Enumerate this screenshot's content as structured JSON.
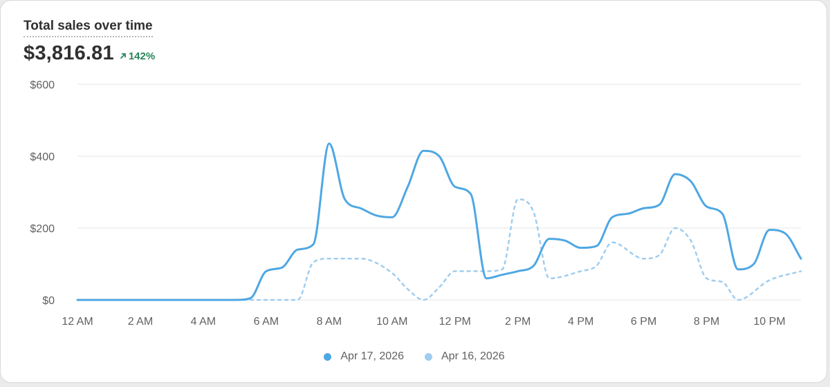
{
  "header": {
    "title": "Total sales over time",
    "total": "$3,816.81",
    "change": "142%"
  },
  "colors": {
    "current": "#4ea7e3",
    "previous": "#9fcdef",
    "change": "#29845a",
    "grid": "#e6e6e6",
    "axis_text": "#616161"
  },
  "chart_data": {
    "type": "line",
    "title": "Total sales over time",
    "xlabel": "",
    "ylabel": "",
    "ylim": [
      0,
      600
    ],
    "xlim": [
      0,
      23
    ],
    "x_ticks": [
      {
        "x": 0,
        "label": "12 AM"
      },
      {
        "x": 2,
        "label": "2 AM"
      },
      {
        "x": 4,
        "label": "4 AM"
      },
      {
        "x": 6,
        "label": "6 AM"
      },
      {
        "x": 8,
        "label": "8 AM"
      },
      {
        "x": 10,
        "label": "10 AM"
      },
      {
        "x": 12,
        "label": "12 PM"
      },
      {
        "x": 14,
        "label": "2 PM"
      },
      {
        "x": 16,
        "label": "4 PM"
      },
      {
        "x": 18,
        "label": "6 PM"
      },
      {
        "x": 20,
        "label": "8 PM"
      },
      {
        "x": 22,
        "label": "10 PM"
      }
    ],
    "y_ticks": [
      {
        "y": 0,
        "label": "$0"
      },
      {
        "y": 200,
        "label": "$200"
      },
      {
        "y": 400,
        "label": "$400"
      },
      {
        "y": 600,
        "label": "$600"
      }
    ],
    "grid": true,
    "legend_position": "bottom",
    "series": [
      {
        "name": "Apr 17, 2026",
        "style": "solid",
        "x": [
          0,
          0.5,
          1,
          1.5,
          2,
          2.5,
          3,
          3.5,
          4,
          4.5,
          5,
          5.5,
          6,
          6.5,
          7,
          7.5,
          8,
          8.5,
          9,
          9.5,
          10,
          10.5,
          11,
          11.5,
          12,
          12.5,
          13,
          13.5,
          14,
          14.5,
          15,
          15.5,
          16,
          16.5,
          17,
          17.5,
          18,
          18.5,
          19,
          19.5,
          20,
          20.5,
          21,
          21.5,
          22,
          22.5,
          23
        ],
        "values": [
          0,
          0,
          0,
          0,
          0,
          0,
          0,
          0,
          0,
          0,
          0,
          5,
          80,
          90,
          140,
          155,
          435,
          280,
          255,
          235,
          230,
          315,
          415,
          400,
          315,
          295,
          60,
          70,
          80,
          95,
          170,
          165,
          145,
          150,
          230,
          240,
          255,
          265,
          350,
          330,
          260,
          240,
          85,
          100,
          195,
          185,
          115
        ]
      },
      {
        "name": "Apr 16, 2026",
        "style": "dashed",
        "x": [
          0,
          1,
          2,
          3,
          4,
          5,
          6,
          7,
          7.5,
          8,
          9,
          10,
          10.5,
          11,
          11.5,
          12,
          13,
          13.5,
          14,
          14.5,
          15,
          16,
          16.5,
          17,
          18,
          18.5,
          19,
          19.5,
          20,
          20.5,
          21,
          22,
          23
        ],
        "values": [
          0,
          0,
          0,
          0,
          0,
          0,
          0,
          0,
          105,
          115,
          115,
          75,
          30,
          0,
          35,
          80,
          80,
          85,
          280,
          245,
          60,
          80,
          95,
          160,
          115,
          125,
          200,
          165,
          60,
          50,
          0,
          55,
          80
        ]
      }
    ]
  }
}
